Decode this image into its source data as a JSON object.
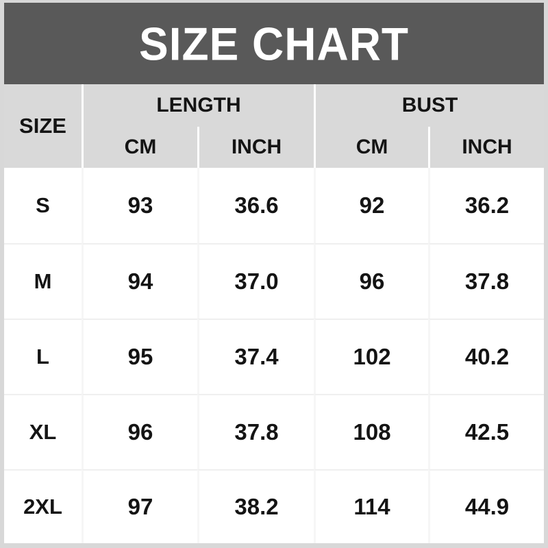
{
  "title": "SIZE CHART",
  "table": {
    "size_header": "SIZE",
    "length_group": "LENGTH",
    "bust_group": "BUST",
    "length_cm_label": "CM",
    "length_inch_label": "INCH",
    "bust_cm_label": "CM",
    "bust_inch_label": "INCH",
    "rows": [
      {
        "size": "S",
        "length_cm": "93",
        "length_inch": "36.6",
        "bust_cm": "92",
        "bust_inch": "36.2"
      },
      {
        "size": "M",
        "length_cm": "94",
        "length_inch": "37.0",
        "bust_cm": "96",
        "bust_inch": "37.8"
      },
      {
        "size": "L",
        "length_cm": "95",
        "length_inch": "37.4",
        "bust_cm": "102",
        "bust_inch": "40.2"
      },
      {
        "size": "XL",
        "length_cm": "96",
        "length_inch": "37.8",
        "bust_cm": "108",
        "bust_inch": "42.5"
      },
      {
        "size": "2XL",
        "length_cm": "97",
        "length_inch": "38.2",
        "bust_cm": "114",
        "bust_inch": "44.9"
      }
    ]
  },
  "colors": {
    "page_bg": "#d8d8d8",
    "banner_bg": "#595959",
    "banner_text": "#ffffff",
    "header_bg": "#d9d9d9",
    "body_bg": "#ffffff",
    "text": "#141414",
    "header_separator": "#ffffff",
    "body_separator": "#efefef"
  },
  "chart_data": {
    "type": "table",
    "title": "SIZE CHART",
    "column_groups": [
      {
        "label": "SIZE",
        "span": 1
      },
      {
        "label": "LENGTH",
        "span": 2,
        "sub_columns": [
          "CM",
          "INCH"
        ]
      },
      {
        "label": "BUST",
        "span": 2,
        "sub_columns": [
          "CM",
          "INCH"
        ]
      }
    ],
    "columns": [
      "SIZE",
      "LENGTH (CM)",
      "LENGTH (INCH)",
      "BUST (CM)",
      "BUST (INCH)"
    ],
    "rows": [
      [
        "S",
        "93",
        "36.6",
        "92",
        "36.2"
      ],
      [
        "M",
        "94",
        "37.0",
        "96",
        "37.8"
      ],
      [
        "L",
        "95",
        "37.4",
        "102",
        "40.2"
      ],
      [
        "XL",
        "96",
        "37.8",
        "108",
        "42.5"
      ],
      [
        "2XL",
        "97",
        "38.2",
        "114",
        "44.9"
      ]
    ]
  }
}
